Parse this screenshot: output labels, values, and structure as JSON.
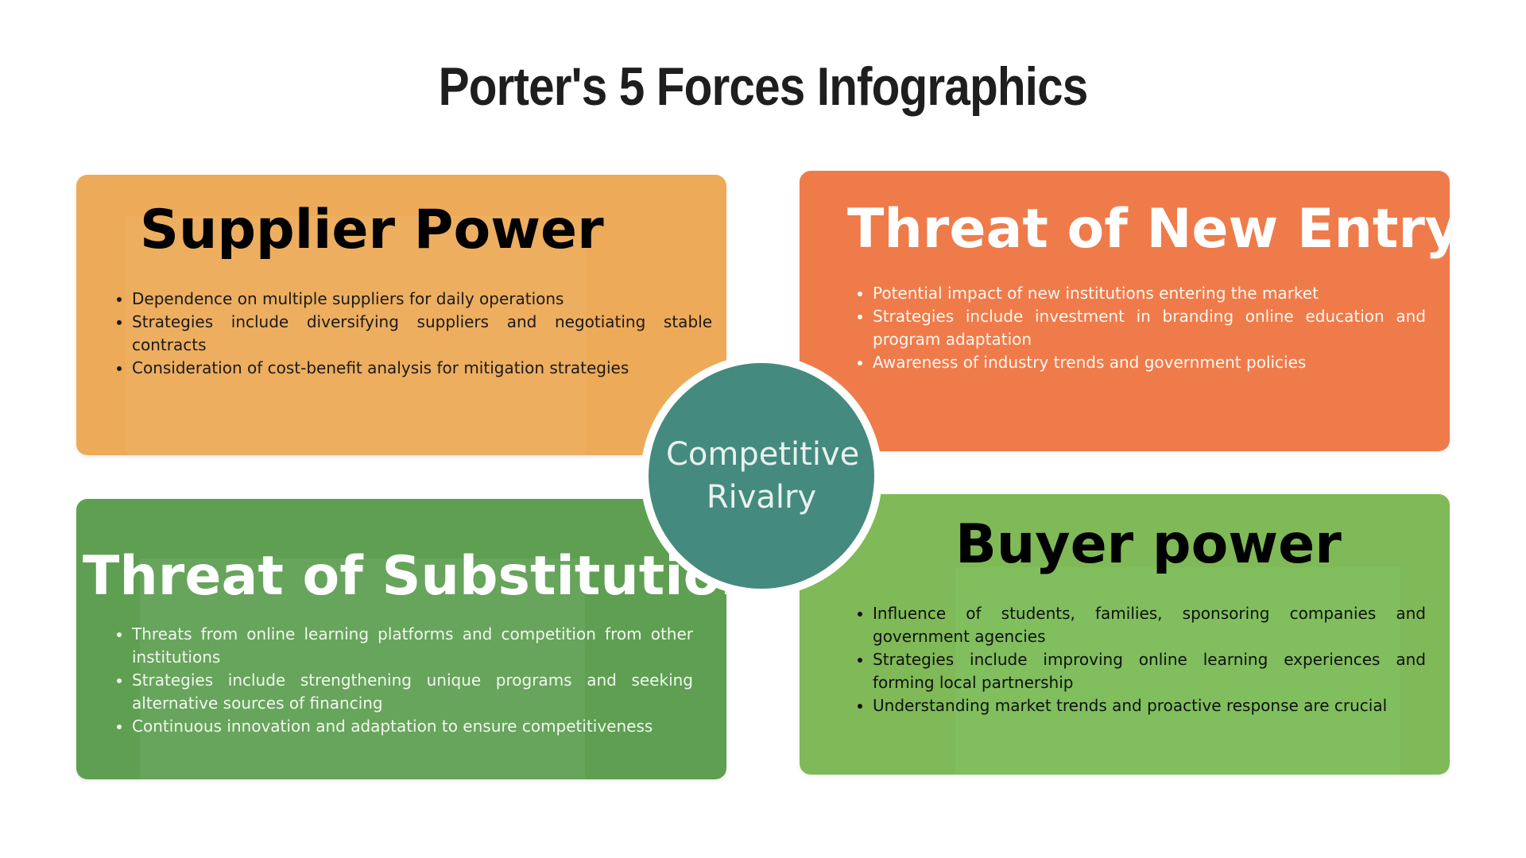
{
  "title": "Porter's 5 Forces Infographics",
  "center": {
    "line1": "Competitive",
    "line2": "Rivalry",
    "color": "#458a7e"
  },
  "forces": {
    "supplier_power": {
      "heading": "Supplier Power",
      "color": "#edaa58",
      "bullets": [
        "Dependence on multiple suppliers for daily operations",
        "Strategies include diversifying suppliers and negotiating stable contracts",
        "Consideration of cost-benefit analysis for mitigation strategies"
      ]
    },
    "threat_of_new_entry": {
      "heading": "Threat of New Entry",
      "color": "#ef7b4b",
      "bullets": [
        "Potential impact of new institutions entering the market",
        "Strategies include investment in branding online education and program adaptation",
        "Awareness of industry trends and government policies"
      ]
    },
    "threat_of_substitution": {
      "heading": "Threat of Substitution",
      "color": "#5e9f52",
      "bullets": [
        "Threats from online learning platforms and competition from other institutions",
        "Strategies include strengthening unique programs and seeking alternative sources of financing",
        "Continuous innovation and adaptation to ensure competitiveness"
      ]
    },
    "buyer_power": {
      "heading": "Buyer power",
      "color": "#80b957",
      "bullets": [
        "Influence of students, families, sponsoring companies and government agencies",
        "Strategies include improving online learning experiences and forming local partnership",
        "Understanding market trends and proactive response are crucial"
      ]
    }
  }
}
